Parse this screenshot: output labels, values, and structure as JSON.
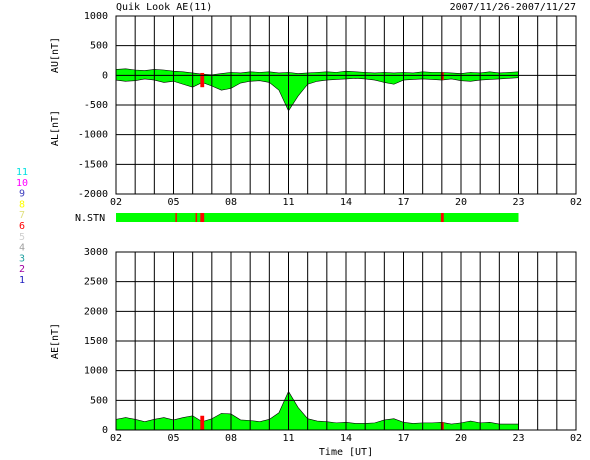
{
  "chart_data": [
    {
      "type": "area",
      "title": "Quik Look AE(11)",
      "subtitle": "2007/11/26-2007/11/27",
      "ylabels": [
        "AU[nT]",
        "AL[nT]"
      ],
      "x": [
        0,
        0.5,
        1,
        1.5,
        2,
        2.5,
        3,
        3.5,
        4,
        4.5,
        5,
        5.5,
        6,
        6.5,
        7,
        7.5,
        8,
        8.5,
        9,
        9.5,
        10,
        10.5,
        11,
        11.5,
        12,
        12.5,
        13,
        13.5,
        14,
        14.5,
        15,
        15.5,
        16,
        16.5,
        17,
        17.5,
        18,
        18.5,
        19,
        19.5,
        20,
        20.5,
        21
      ],
      "series": [
        {
          "color": "#00ff00",
          "values": [
            100,
            110,
            90,
            80,
            100,
            90,
            70,
            60,
            40,
            20,
            10,
            30,
            50,
            40,
            60,
            50,
            60,
            40,
            50,
            30,
            40,
            50,
            60,
            50,
            70,
            60,
            50,
            40,
            50,
            40,
            50,
            40,
            60,
            50,
            50,
            40,
            30,
            50,
            40,
            60,
            40,
            50,
            60
          ]
        },
        {
          "color": "#00ff00",
          "values": [
            -80,
            -100,
            -90,
            -60,
            -80,
            -120,
            -100,
            -150,
            -200,
            -120,
            -180,
            -250,
            -220,
            -130,
            -100,
            -90,
            -120,
            -250,
            -600,
            -350,
            -150,
            -100,
            -80,
            -70,
            -60,
            -50,
            -60,
            -80,
            -120,
            -150,
            -80,
            -70,
            -60,
            -70,
            -80,
            -60,
            -90,
            -100,
            -80,
            -70,
            -60,
            -50,
            -40
          ]
        }
      ],
      "highlights": [
        [
          4.4,
          4.6
        ],
        [
          16.95,
          17.1
        ]
      ],
      "highlight_color": "#ff0000",
      "xlim": [
        0,
        24
      ],
      "xticks": [
        {
          "value": 0,
          "label": "02"
        },
        {
          "value": 3,
          "label": "05"
        },
        {
          "value": 6,
          "label": "08"
        },
        {
          "value": 9,
          "label": "11"
        },
        {
          "value": 12,
          "label": "14"
        },
        {
          "value": 15,
          "label": "17"
        },
        {
          "value": 18,
          "label": "20"
        },
        {
          "value": 21,
          "label": "23"
        },
        {
          "value": 24,
          "label": "02"
        }
      ],
      "x_grid_step": 1,
      "ylim": [
        -2000,
        1000
      ],
      "yticks": [
        -2000,
        -1500,
        -1000,
        -500,
        0,
        500,
        1000
      ]
    },
    {
      "type": "timeline",
      "label": "N.STN",
      "color": "#00ff00",
      "extent": [
        0,
        21
      ],
      "highlights": [
        [
          3.1,
          3.15
        ],
        [
          4.15,
          4.2
        ],
        [
          4.4,
          4.6
        ],
        [
          16.95,
          17.1
        ]
      ],
      "highlight_color": "#ff0000",
      "xlim": [
        0,
        24
      ],
      "station_legend": [
        {
          "label": "11",
          "color": "#00e0e0"
        },
        {
          "label": "10",
          "color": "#ff00ff"
        },
        {
          "label": "9",
          "color": "#4040c0"
        },
        {
          "label": "8",
          "color": "#ffff00"
        },
        {
          "label": "7",
          "color": "#e0e080"
        },
        {
          "label": "6",
          "color": "#ff0000"
        },
        {
          "label": "5",
          "color": "#d0d0d0"
        },
        {
          "label": "4",
          "color": "#a0a0a0"
        },
        {
          "label": "3",
          "color": "#20a0a0"
        },
        {
          "label": "2",
          "color": "#a000a0"
        },
        {
          "label": "1",
          "color": "#2020c0"
        }
      ]
    },
    {
      "type": "area",
      "ylabel": "AE[nT]",
      "xlabel": "Time [UT]",
      "x": [
        0,
        0.5,
        1,
        1.5,
        2,
        2.5,
        3,
        3.5,
        4,
        4.5,
        5,
        5.5,
        6,
        6.5,
        7,
        7.5,
        8,
        8.5,
        9,
        9.5,
        10,
        10.5,
        11,
        11.5,
        12,
        12.5,
        13,
        13.5,
        14,
        14.5,
        15,
        15.5,
        16,
        16.5,
        17,
        17.5,
        18,
        18.5,
        19,
        19.5,
        20,
        20.5,
        21
      ],
      "series": [
        {
          "color": "#00ff00",
          "values": [
            180,
            210,
            180,
            140,
            180,
            210,
            170,
            210,
            240,
            140,
            190,
            280,
            270,
            170,
            160,
            140,
            180,
            290,
            650,
            380,
            190,
            150,
            140,
            120,
            130,
            110,
            110,
            120,
            170,
            190,
            130,
            110,
            120,
            120,
            130,
            100,
            120,
            150,
            120,
            130,
            100,
            100,
            100
          ]
        }
      ],
      "highlights": [
        [
          4.4,
          4.6
        ],
        [
          16.95,
          17.1
        ]
      ],
      "highlight_color": "#ff0000",
      "xlim": [
        0,
        24
      ],
      "xticks": [
        {
          "value": 0,
          "label": "02"
        },
        {
          "value": 3,
          "label": "05"
        },
        {
          "value": 6,
          "label": "08"
        },
        {
          "value": 9,
          "label": "11"
        },
        {
          "value": 12,
          "label": "14"
        },
        {
          "value": 15,
          "label": "17"
        },
        {
          "value": 18,
          "label": "20"
        },
        {
          "value": 21,
          "label": "23"
        },
        {
          "value": 24,
          "label": "02"
        }
      ],
      "x_grid_step": 1,
      "ylim": [
        0,
        3000
      ],
      "yticks": [
        0,
        500,
        1000,
        1500,
        2000,
        2500,
        3000
      ]
    }
  ]
}
